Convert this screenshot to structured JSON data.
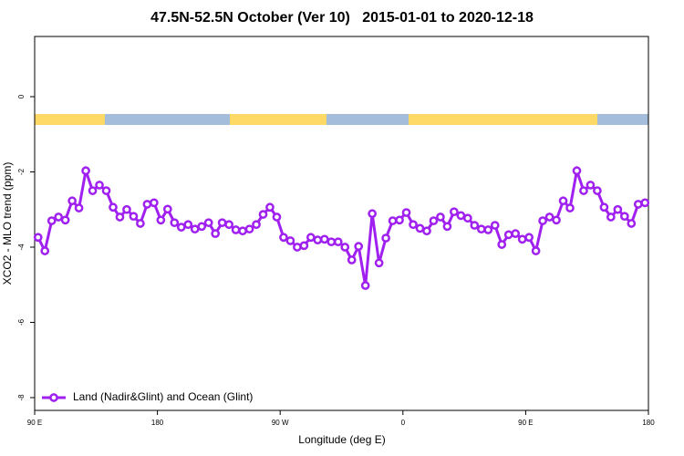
{
  "chart_data": {
    "type": "line",
    "title": "47.5N-52.5N October (Ver 10)   2015-01-01 to 2020-12-18",
    "x_label": "Longitude (deg E)",
    "y_label": "XCO2 - MLO trend (ppm)",
    "x": [
      92.5,
      97.5,
      102.5,
      107.5,
      112.5,
      117.5,
      122.5,
      127.5,
      132.5,
      137.5,
      142.5,
      147.5,
      152.5,
      157.5,
      162.5,
      167.5,
      172.5,
      177.5,
      182.5,
      187.5,
      192.5,
      197.5,
      202.5,
      207.5,
      212.5,
      217.5,
      222.5,
      227.5,
      232.5,
      237.5,
      242.5,
      247.5,
      252.5,
      257.5,
      262.5,
      267.5,
      272.5,
      277.5,
      282.5,
      287.5,
      292.5,
      297.5,
      302.5,
      307.5,
      312.5,
      317.5,
      322.5,
      327.5,
      332.5,
      337.5,
      342.5,
      347.5,
      352.5,
      357.5,
      362.5,
      367.5,
      372.5,
      377.5,
      382.5,
      387.5,
      392.5,
      397.5,
      402.5,
      407.5,
      412.5,
      417.5,
      422.5,
      427.5,
      432.5,
      437.5,
      442.5,
      447.5,
      452.5,
      457.5,
      462.5,
      467.5,
      472.5,
      477.5,
      482.5,
      487.5,
      492.5,
      497.5,
      502.5,
      507.5,
      512.5,
      517.5,
      522.5,
      527.5,
      532.5,
      537.5
    ],
    "series": [
      {
        "name": "Land (Nadir&Glint) and Ocean (Glint)",
        "color": "#a020f0",
        "values": [
          -3.74,
          -4.1,
          -3.3,
          -3.2,
          -3.28,
          -2.77,
          -2.96,
          -1.97,
          -2.5,
          -2.35,
          -2.5,
          -2.94,
          -3.2,
          -3.0,
          -3.18,
          -3.37,
          -2.86,
          -2.82,
          -3.28,
          -2.99,
          -3.35,
          -3.47,
          -3.4,
          -3.52,
          -3.45,
          -3.35,
          -3.64,
          -3.35,
          -3.4,
          -3.54,
          -3.57,
          -3.52,
          -3.4,
          -3.13,
          -2.94,
          -3.2,
          -3.74,
          -3.83,
          -4.0,
          -3.96,
          -3.74,
          -3.81,
          -3.79,
          -3.86,
          -3.86,
          -4.0,
          -4.34,
          -3.98,
          -5.02,
          -3.11,
          -4.42,
          -3.76,
          -3.3,
          -3.28,
          -3.08,
          -3.4,
          -3.5,
          -3.57,
          -3.3,
          -3.2,
          -3.45,
          -3.06,
          -3.16,
          -3.23,
          -3.42,
          -3.52,
          -3.54,
          -3.42,
          -3.93,
          -3.67,
          -3.64,
          -3.79,
          -3.74,
          -4.1,
          -3.3,
          -3.2,
          -3.28,
          -2.77,
          -2.96,
          -1.97,
          -2.5,
          -2.35,
          -2.5,
          -2.94,
          -3.2,
          -3.0,
          -3.18,
          -3.37,
          -2.86,
          -2.82
        ]
      }
    ],
    "xlim": [
      90,
      540
    ],
    "xticks": [
      {
        "value": 90,
        "label": "90 E"
      },
      180,
      {
        "value": 270,
        "label": "90 W"
      },
      {
        "value": 360,
        "label": "0"
      },
      {
        "value": 450,
        "label": "90 E"
      },
      {
        "value": 540,
        "label": "180"
      }
    ],
    "ylim": [
      -8.34,
      1.6
    ],
    "yticks": [
      0,
      -2,
      -4,
      -6,
      -8
    ],
    "legend": "bottom-left"
  }
}
